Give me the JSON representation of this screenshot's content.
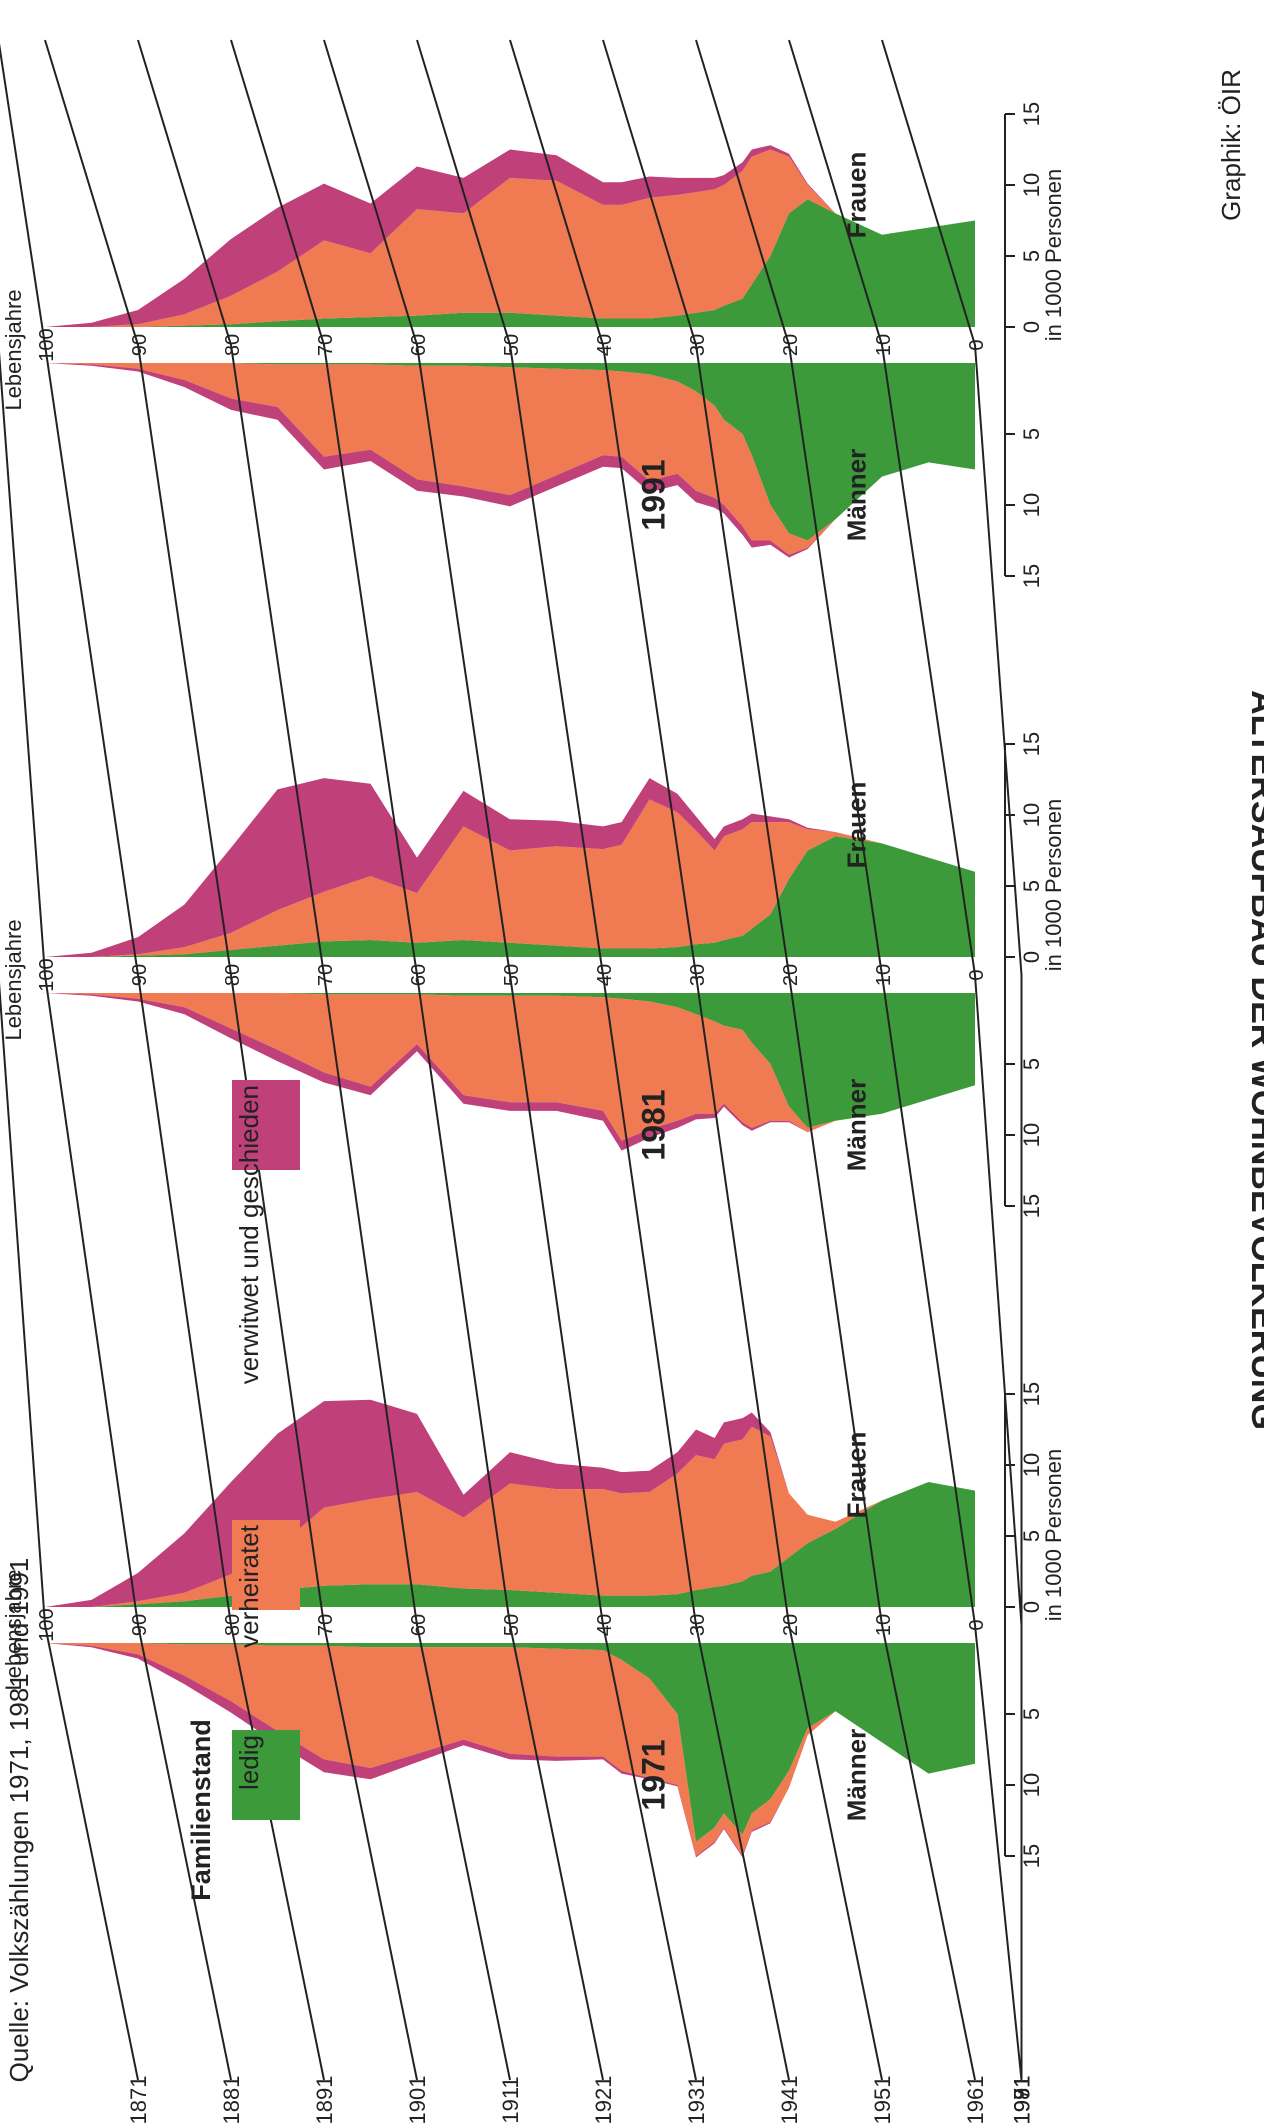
{
  "page": {
    "title_partial": "ALTERSAUFBAU DER WOHNBEVÖLKERUNG",
    "source": "Quelle:  Volkszählungen 1971, 1981 und 1991",
    "credit": "Graphik: ÖIR"
  },
  "colors": {
    "ledig": "#3d9a3a",
    "verheiratet": "#f07a52",
    "verwitwet": "#c0407a",
    "grid": "#222222"
  },
  "legend": {
    "title": "Familienstand",
    "items": [
      {
        "key": "ledig",
        "label": "ledig"
      },
      {
        "key": "verheiratet",
        "label": "verheiratet"
      },
      {
        "key": "verwitwet",
        "label": "verwitwet und geschieden"
      }
    ]
  },
  "labels": {
    "age_axis": "Lebensjahre",
    "persons_axis": "in 1000 Personen",
    "men": "Männer",
    "women": "Frauen"
  },
  "birth_year_ticks": [
    "1871",
    "1881",
    "1891",
    "1901",
    "1911",
    "1921",
    "1931",
    "1941",
    "1951",
    "1961",
    "1971",
    "1981",
    "1991"
  ],
  "age_ticks": [
    "100",
    "90",
    "80",
    "70",
    "60",
    "50",
    "40",
    "30",
    "20",
    "10",
    "0"
  ],
  "persons_ticks": [
    "15",
    "10",
    "5",
    "0",
    "5",
    "10",
    "15"
  ],
  "chart_data": {
    "type": "area",
    "description_note": "Stacked population pyramids by marital status, values in 1000 persons per single year of age (read approximately from the graphic).",
    "ages": [
      0,
      5,
      10,
      15,
      18,
      20,
      22,
      24,
      25,
      27,
      28,
      30,
      32,
      35,
      38,
      40,
      45,
      50,
      55,
      60,
      65,
      70,
      75,
      80,
      85,
      90,
      95,
      100
    ],
    "panels": [
      {
        "year": "1971",
        "men": {
          "ledig": [
            8.5,
            9.2,
            7.0,
            4.8,
            6.0,
            9.0,
            11.0,
            12.0,
            13.5,
            12.0,
            13.0,
            14.0,
            5.0,
            2.5,
            1.2,
            0.5,
            0.4,
            0.3,
            0.3,
            0.3,
            0.3,
            0.2,
            0.2,
            0.1,
            0.1,
            0.0,
            0.0,
            0.0
          ],
          "verheiratet": [
            0.0,
            0.0,
            0.0,
            0.0,
            0.5,
            1.2,
            1.6,
            1.2,
            1.5,
            1.0,
            1.0,
            1.0,
            5.0,
            7.0,
            7.8,
            7.5,
            7.6,
            7.5,
            6.5,
            7.5,
            8.5,
            8.0,
            6.0,
            4.0,
            2.2,
            0.8,
            0.2,
            0.0
          ],
          "verwitwet": [
            0.0,
            0.0,
            0.0,
            0.0,
            0.0,
            0.0,
            0.1,
            0.1,
            0.1,
            0.1,
            0.1,
            0.1,
            0.1,
            0.1,
            0.2,
            0.2,
            0.3,
            0.4,
            0.4,
            0.6,
            0.8,
            0.9,
            0.9,
            0.8,
            0.6,
            0.3,
            0.1,
            0.0
          ]
        },
        "women": {
          "ledig": [
            8.2,
            8.8,
            7.5,
            5.5,
            4.5,
            3.5,
            2.5,
            2.2,
            1.8,
            1.5,
            1.4,
            1.2,
            0.9,
            0.8,
            0.8,
            0.8,
            1.0,
            1.2,
            1.3,
            1.6,
            1.6,
            1.5,
            1.2,
            0.8,
            0.4,
            0.2,
            0.0,
            0.0
          ],
          "verheiratet": [
            0.0,
            0.0,
            0.0,
            0.5,
            2.0,
            4.5,
            9.5,
            10.5,
            10.0,
            10.0,
            9.0,
            9.5,
            8.5,
            7.3,
            7.2,
            7.5,
            7.3,
            7.5,
            5.0,
            6.5,
            6.0,
            5.5,
            3.0,
            1.5,
            0.6,
            0.2,
            0.0,
            0.0
          ],
          "verwitwet": [
            0.0,
            0.0,
            0.0,
            0.0,
            0.0,
            0.0,
            0.3,
            1.0,
            1.5,
            1.5,
            1.5,
            1.8,
            1.5,
            1.5,
            1.5,
            1.5,
            1.8,
            2.2,
            1.6,
            5.5,
            7.0,
            7.5,
            8.0,
            6.5,
            4.2,
            2.0,
            0.5,
            0.0
          ]
        }
      },
      {
        "year": "1981",
        "men": {
          "ledig": [
            6.5,
            7.5,
            8.5,
            9.0,
            9.5,
            8.0,
            5.0,
            3.5,
            2.6,
            2.3,
            2.0,
            1.5,
            1.0,
            0.6,
            0.4,
            0.3,
            0.2,
            0.2,
            0.2,
            0.1,
            0.1,
            0.1,
            0.0,
            0.0,
            0.0,
            0.0,
            0.0,
            0.0
          ],
          "verheiratet": [
            0.0,
            0.0,
            0.0,
            0.0,
            0.3,
            1.0,
            4.0,
            6.0,
            6.5,
            5.5,
            6.5,
            7.0,
            8.0,
            9.0,
            10.0,
            8.0,
            7.5,
            7.5,
            7.0,
            3.5,
            6.5,
            5.5,
            4.0,
            2.5,
            1.0,
            0.4,
            0.1,
            0.0
          ],
          "verwitwet": [
            0.0,
            0.0,
            0.0,
            0.0,
            0.0,
            0.1,
            0.1,
            0.2,
            0.2,
            0.2,
            0.3,
            0.4,
            0.5,
            0.6,
            0.7,
            0.7,
            0.6,
            0.6,
            0.6,
            0.5,
            0.6,
            0.7,
            0.8,
            0.7,
            0.5,
            0.2,
            0.1,
            0.0
          ]
        },
        "women": {
          "ledig": [
            6.0,
            7.0,
            8.0,
            8.5,
            7.5,
            5.5,
            3.0,
            2.0,
            1.5,
            1.2,
            1.0,
            0.9,
            0.7,
            0.6,
            0.6,
            0.6,
            0.8,
            1.0,
            1.2,
            1.0,
            1.2,
            1.1,
            0.8,
            0.5,
            0.2,
            0.1,
            0.0,
            0.0
          ],
          "verheiratet": [
            0.0,
            0.0,
            0.0,
            0.3,
            1.5,
            4.0,
            6.5,
            7.5,
            7.5,
            7.3,
            6.5,
            8.0,
            9.5,
            10.5,
            7.3,
            7.0,
            7.0,
            6.5,
            8.0,
            3.5,
            4.5,
            3.5,
            2.5,
            1.2,
            0.5,
            0.1,
            0.0,
            0.0
          ],
          "verwitwet": [
            0.0,
            0.0,
            0.0,
            0.0,
            0.1,
            0.2,
            0.4,
            0.6,
            0.7,
            0.7,
            0.8,
            1.0,
            1.3,
            1.5,
            1.6,
            1.6,
            1.8,
            2.2,
            2.5,
            2.5,
            6.5,
            8.0,
            8.5,
            6.0,
            3.0,
            1.2,
            0.3,
            0.0
          ]
        }
      },
      {
        "year": "1991",
        "men": {
          "ledig": [
            7.5,
            7.0,
            8.0,
            11.0,
            12.5,
            12.0,
            10.0,
            6.5,
            5.0,
            4.0,
            3.0,
            2.0,
            1.3,
            0.8,
            0.6,
            0.5,
            0.4,
            0.3,
            0.2,
            0.2,
            0.1,
            0.1,
            0.1,
            0.0,
            0.0,
            0.0,
            0.0,
            0.0
          ],
          "verheiratet": [
            0.0,
            0.0,
            0.0,
            0.0,
            0.5,
            1.5,
            2.5,
            6.0,
            6.5,
            6.0,
            6.5,
            7.0,
            6.5,
            7.5,
            6.0,
            6.0,
            7.5,
            9.0,
            8.5,
            8.0,
            6.0,
            6.5,
            3.0,
            2.5,
            1.2,
            0.4,
            0.1,
            0.0
          ],
          "verwitwet": [
            0.0,
            0.0,
            0.0,
            0.0,
            0.1,
            0.2,
            0.3,
            0.5,
            0.6,
            0.6,
            0.7,
            0.8,
            0.8,
            0.8,
            0.8,
            0.8,
            0.8,
            0.8,
            0.7,
            0.8,
            0.8,
            0.9,
            0.9,
            0.8,
            0.5,
            0.2,
            0.1,
            0.0
          ]
        },
        "women": {
          "ledig": [
            7.5,
            7.0,
            6.5,
            8.0,
            9.0,
            8.0,
            5.0,
            3.0,
            2.0,
            1.5,
            1.2,
            1.0,
            0.8,
            0.6,
            0.6,
            0.6,
            0.8,
            1.0,
            1.0,
            0.8,
            0.7,
            0.6,
            0.4,
            0.2,
            0.1,
            0.0,
            0.0,
            0.0
          ],
          "verheiratet": [
            0.0,
            0.0,
            0.0,
            0.0,
            1.0,
            4.0,
            7.5,
            9.0,
            9.0,
            8.5,
            8.5,
            8.5,
            8.5,
            8.5,
            8.0,
            8.0,
            9.5,
            9.5,
            7.0,
            7.5,
            4.5,
            5.5,
            3.5,
            2.0,
            0.8,
            0.2,
            0.0,
            0.0
          ],
          "verwitwet": [
            0.0,
            0.0,
            0.0,
            0.0,
            0.1,
            0.2,
            0.3,
            0.5,
            0.6,
            0.7,
            0.8,
            1.0,
            1.2,
            1.5,
            1.6,
            1.6,
            1.8,
            2.0,
            2.5,
            3.0,
            3.5,
            4.0,
            4.5,
            4.0,
            2.5,
            1.0,
            0.3,
            0.0
          ]
        }
      }
    ]
  }
}
